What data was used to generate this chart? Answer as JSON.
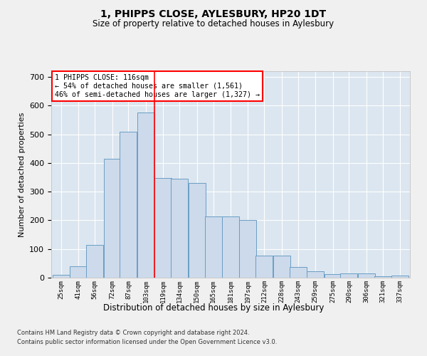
{
  "title": "1, PHIPPS CLOSE, AYLESBURY, HP20 1DT",
  "subtitle": "Size of property relative to detached houses in Aylesbury",
  "xlabel": "Distribution of detached houses by size in Aylesbury",
  "ylabel": "Number of detached properties",
  "bar_color": "#ccdaeb",
  "bar_edge_color": "#6a9ec4",
  "background_color": "#dce6f0",
  "grid_color": "#ffffff",
  "vline_x": 119,
  "vline_color": "red",
  "bins": [
    25,
    41,
    56,
    72,
    87,
    103,
    119,
    134,
    150,
    165,
    181,
    197,
    212,
    228,
    243,
    259,
    275,
    290,
    306,
    321,
    337
  ],
  "values": [
    10,
    40,
    113,
    415,
    510,
    575,
    348,
    345,
    330,
    213,
    213,
    200,
    78,
    78,
    37,
    22,
    12,
    15,
    15,
    4,
    8
  ],
  "annotation_text": "1 PHIPPS CLOSE: 116sqm\n← 54% of detached houses are smaller (1,561)\n46% of semi-detached houses are larger (1,327) →",
  "annotation_box_color": "#ffffff",
  "annotation_box_edgecolor": "red",
  "footnote1": "Contains HM Land Registry data © Crown copyright and database right 2024.",
  "footnote2": "Contains public sector information licensed under the Open Government Licence v3.0.",
  "ylim": [
    0,
    720
  ],
  "yticks": [
    0,
    100,
    200,
    300,
    400,
    500,
    600,
    700
  ],
  "fig_bg": "#f0f0f0"
}
